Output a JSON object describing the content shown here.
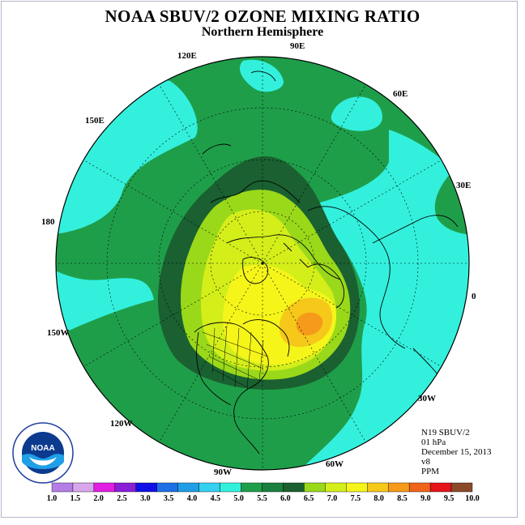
{
  "title": "NOAA SBUV/2 OZONE MIXING RATIO",
  "subtitle": "Northern Hemisphere",
  "longitude_labels": [
    "90E",
    "60E",
    "30E",
    "0",
    "30W",
    "60W",
    "90W",
    "120W",
    "150W",
    "180",
    "150E",
    "120E"
  ],
  "info": {
    "instrument": "N19 SBUV/2",
    "level": "01 hPa",
    "date": "December 15, 2013",
    "version": "v8",
    "units": "PPM"
  },
  "colorbar": {
    "ticks": [
      "1.0",
      "1.5",
      "2.0",
      "2.5",
      "3.0",
      "3.5",
      "4.0",
      "4.5",
      "5.0",
      "5.5",
      "6.0",
      "6.5",
      "7.0",
      "7.5",
      "8.0",
      "8.5",
      "9.0",
      "9.5",
      "10.0"
    ],
    "colors": [
      "#b57de6",
      "#d8a6ec",
      "#e11ee1",
      "#8a1fd8",
      "#1010e6",
      "#1f6fe6",
      "#1f9ee6",
      "#33d0f0",
      "#33f0dd",
      "#1f9e4a",
      "#1a8040",
      "#1a6030",
      "#9ad81a",
      "#d4ee1a",
      "#f5f51a",
      "#f5c81a",
      "#f59a1a",
      "#f0641a",
      "#e6141a",
      "#8a4a2a"
    ]
  },
  "map_colors": {
    "ocean_fill": "#33f0dd",
    "band_5_5": "#1f9e4a",
    "band_6_0": "#1a6030",
    "band_6_5": "#9ad81a",
    "band_7_0": "#d4ee1a",
    "band_7_5": "#f5f51a",
    "band_8_0": "#f5c81a",
    "band_8_5": "#f59a1a"
  },
  "logo": {
    "text": "NOAA",
    "ring_text": "NATIONAL OCEANIC AND ATMOSPHERIC ADMINISTRATION"
  }
}
